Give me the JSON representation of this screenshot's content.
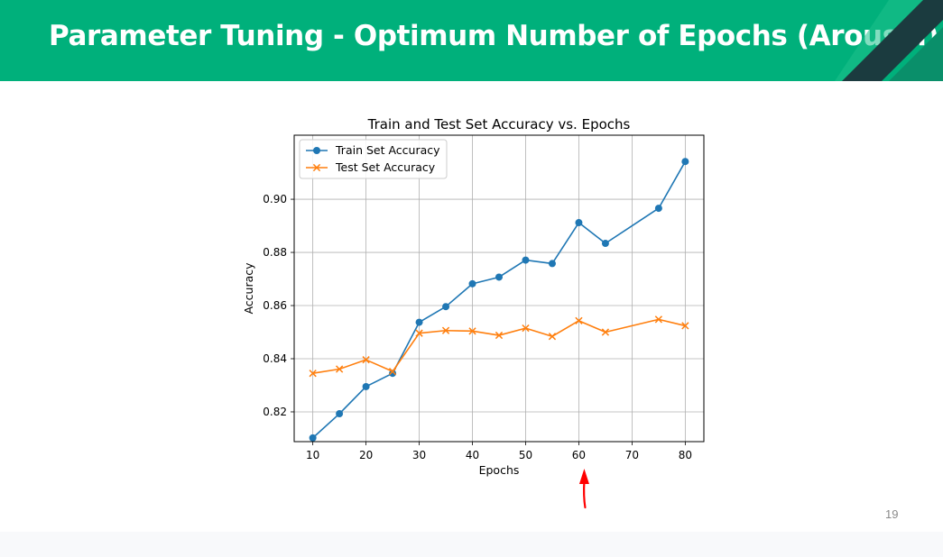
{
  "slide": {
    "title": "Parameter Tuning  - Optimum Number of Epochs (Arousal)",
    "page_number": "19",
    "colors": {
      "header": "#00b07b",
      "annotation_arrow": "#ff0000"
    }
  },
  "chart_data": {
    "type": "line",
    "title": "Train and Test Set Accuracy vs. Epochs",
    "xlabel": "Epochs",
    "ylabel": "Accuracy",
    "xlim": [
      6.5,
      83.5
    ],
    "ylim": [
      0.8088,
      0.9241
    ],
    "xticks": [
      10,
      20,
      30,
      40,
      50,
      60,
      70,
      80
    ],
    "yticks": [
      0.82,
      0.84,
      0.86,
      0.88,
      0.9
    ],
    "ytick_labels": [
      "0.82",
      "0.84",
      "0.86",
      "0.88",
      "0.90"
    ],
    "grid": true,
    "legend_position": "upper-left",
    "series": [
      {
        "name": "Train Set Accuracy",
        "marker": "circle",
        "color": "#1f77b4",
        "x": [
          10,
          15,
          20,
          25,
          30,
          35,
          40,
          45,
          50,
          55,
          60,
          65,
          75,
          80
        ],
        "values": [
          0.8102,
          0.8193,
          0.8295,
          0.8345,
          0.8537,
          0.8596,
          0.8682,
          0.8707,
          0.8771,
          0.8758,
          0.8912,
          0.8834,
          0.8966,
          0.9142
        ]
      },
      {
        "name": "Test Set Accuracy",
        "marker": "x",
        "color": "#ff7f0e",
        "x": [
          10,
          15,
          20,
          25,
          30,
          35,
          40,
          45,
          50,
          55,
          60,
          65,
          75,
          80
        ],
        "values": [
          0.8345,
          0.8361,
          0.8396,
          0.8352,
          0.8496,
          0.8506,
          0.8504,
          0.8488,
          0.8515,
          0.8484,
          0.8543,
          0.85,
          0.8548,
          0.8524
        ]
      }
    ],
    "annotation": {
      "type": "arrow",
      "points_to_x": 60,
      "color": "#ff0000"
    }
  }
}
